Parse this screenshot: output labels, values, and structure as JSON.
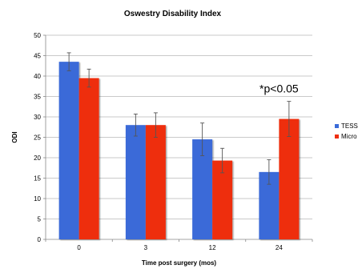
{
  "chart_data": {
    "type": "bar",
    "title": "Oswestry Disability Index",
    "xlabel": "Time post surgery (mos)",
    "ylabel": "ODI",
    "ylim": [
      0,
      50
    ],
    "ytick_step": 5,
    "yticks": [
      "0",
      "5",
      "10",
      "15",
      "20",
      "25",
      "30",
      "35",
      "40",
      "45",
      "50"
    ],
    "grid": true,
    "legend_position": "right",
    "categories": [
      "0",
      "3",
      "12",
      "24"
    ],
    "series": [
      {
        "name": "TESS",
        "color": "#3a6bd8",
        "values": [
          43.5,
          28,
          24.5,
          16.5
        ],
        "errors": [
          2.2,
          2.7,
          4,
          3
        ]
      },
      {
        "name": "Micro",
        "color": "#ee2e10",
        "values": [
          39.5,
          28,
          19.3,
          29.5
        ],
        "errors": [
          2.2,
          3,
          3,
          4.3
        ]
      }
    ],
    "annotations": [
      {
        "text": "*p<0.05",
        "category": "24",
        "y": 36
      }
    ]
  }
}
